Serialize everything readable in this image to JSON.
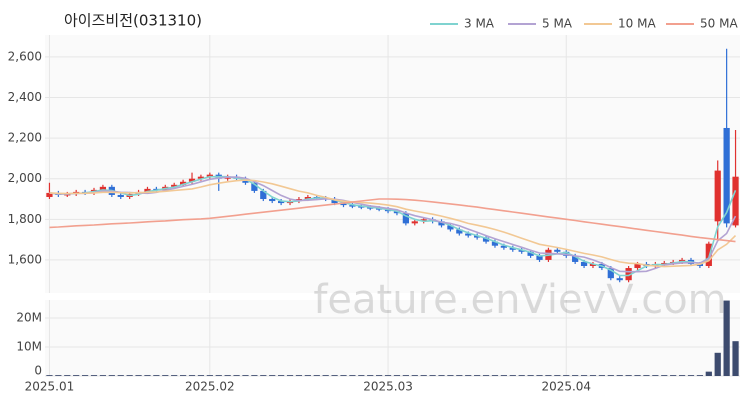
{
  "chart_data": {
    "type": "candlestick",
    "title": "아이즈비전(031310)",
    "watermark": "feature.enVievV.com",
    "categories": [
      "2025.01",
      null,
      null,
      null,
      null,
      null,
      null,
      null,
      null,
      null,
      null,
      null,
      null,
      null,
      null,
      null,
      null,
      null,
      "2025.02",
      null,
      null,
      null,
      null,
      null,
      null,
      null,
      null,
      null,
      null,
      null,
      null,
      null,
      null,
      null,
      null,
      null,
      null,
      null,
      "2025.03",
      null,
      null,
      null,
      null,
      null,
      null,
      null,
      null,
      null,
      null,
      null,
      null,
      null,
      null,
      null,
      null,
      null,
      null,
      null,
      "2025.04",
      null,
      null,
      null,
      null,
      null,
      null,
      null,
      null,
      null,
      null,
      null,
      null,
      null,
      null,
      null,
      null,
      null,
      null,
      null
    ],
    "open": [
      1910,
      1930,
      1920,
      1925,
      1935,
      1930,
      1945,
      1960,
      1920,
      1910,
      1925,
      1935,
      1950,
      1945,
      1960,
      1970,
      1985,
      2000,
      2010,
      2020,
      2000,
      2010,
      2000,
      1980,
      1940,
      1900,
      1890,
      1880,
      1890,
      1900,
      1910,
      1905,
      1900,
      1880,
      1870,
      1865,
      1860,
      1855,
      1850,
      1840,
      1830,
      1780,
      1790,
      1800,
      1790,
      1770,
      1750,
      1730,
      1720,
      1710,
      1690,
      1670,
      1660,
      1650,
      1640,
      1620,
      1600,
      1650,
      1640,
      1620,
      1590,
      1570,
      1580,
      1560,
      1510,
      1500,
      1560,
      1580,
      1570,
      1580,
      1585,
      1590,
      1600,
      1580,
      1570,
      1790,
      2250,
      1770
    ],
    "high": [
      1980,
      1940,
      1935,
      1945,
      1945,
      1955,
      1970,
      1970,
      1930,
      1935,
      1945,
      1960,
      1960,
      1970,
      1980,
      1995,
      2030,
      2020,
      2030,
      2030,
      2020,
      2020,
      2010,
      1990,
      1950,
      1910,
      1900,
      1900,
      1910,
      1920,
      1920,
      1915,
      1910,
      1890,
      1880,
      1875,
      1870,
      1865,
      1860,
      1850,
      1840,
      1800,
      1810,
      1810,
      1800,
      1780,
      1760,
      1740,
      1730,
      1720,
      1700,
      1680,
      1670,
      1660,
      1650,
      1630,
      1660,
      1660,
      1650,
      1630,
      1600,
      1590,
      1590,
      1570,
      1520,
      1570,
      1590,
      1590,
      1590,
      1595,
      1600,
      1610,
      1610,
      1590,
      1690,
      2090,
      2640,
      2240
    ],
    "low": [
      1900,
      1910,
      1910,
      1915,
      1920,
      1920,
      1935,
      1910,
      1900,
      1900,
      1915,
      1925,
      1935,
      1935,
      1950,
      1960,
      1975,
      1990,
      2000,
      1940,
      1990,
      1990,
      1970,
      1930,
      1890,
      1880,
      1870,
      1870,
      1880,
      1890,
      1895,
      1890,
      1870,
      1860,
      1855,
      1850,
      1845,
      1840,
      1830,
      1820,
      1770,
      1770,
      1780,
      1780,
      1760,
      1740,
      1720,
      1710,
      1700,
      1680,
      1660,
      1650,
      1640,
      1630,
      1610,
      1590,
      1590,
      1630,
      1610,
      1580,
      1560,
      1560,
      1550,
      1500,
      1490,
      1490,
      1550,
      1560,
      1560,
      1570,
      1575,
      1580,
      1570,
      1560,
      1560,
      1700,
      1760,
      1760
    ],
    "close": [
      1930,
      1920,
      1925,
      1935,
      1930,
      1945,
      1960,
      1920,
      1910,
      1925,
      1935,
      1950,
      1945,
      1960,
      1970,
      1985,
      2000,
      2010,
      2020,
      2000,
      2010,
      2000,
      1980,
      1940,
      1900,
      1890,
      1880,
      1890,
      1900,
      1910,
      1905,
      1900,
      1880,
      1870,
      1865,
      1860,
      1855,
      1850,
      1840,
      1830,
      1780,
      1790,
      1800,
      1790,
      1770,
      1750,
      1730,
      1720,
      1710,
      1690,
      1670,
      1660,
      1650,
      1640,
      1620,
      1600,
      1650,
      1640,
      1620,
      1590,
      1570,
      1580,
      1560,
      1510,
      1500,
      1560,
      1580,
      1570,
      1580,
      1585,
      1590,
      1600,
      1580,
      1570,
      1680,
      2040,
      1780,
      2010
    ],
    "up_color": "#e0312f",
    "down_color": "#2f6fd6",
    "ylim": [
      1437,
      2708
    ],
    "yticks": [
      {
        "value": 1600,
        "label": "1,600"
      },
      {
        "value": 1800,
        "label": "1,800"
      },
      {
        "value": 2000,
        "label": "2,000"
      },
      {
        "value": 2200,
        "label": "2,200"
      },
      {
        "value": 2400,
        "label": "2,400"
      },
      {
        "value": 2600,
        "label": "2,600"
      }
    ],
    "grid": true,
    "legend": "top-right",
    "series": [
      {
        "name": "3 MA",
        "color": "#7fd3d0",
        "values": [
          1930,
          1925,
          1925,
          1927,
          1930,
          1937,
          1945,
          1942,
          1930,
          1918,
          1923,
          1937,
          1943,
          1952,
          1958,
          1972,
          1985,
          1998,
          2010,
          2010,
          2010,
          2003,
          1997,
          1973,
          1940,
          1910,
          1890,
          1887,
          1890,
          1900,
          1905,
          1905,
          1895,
          1883,
          1872,
          1865,
          1860,
          1855,
          1848,
          1840,
          1817,
          1800,
          1790,
          1793,
          1787,
          1770,
          1750,
          1733,
          1720,
          1707,
          1690,
          1673,
          1660,
          1650,
          1637,
          1620,
          1623,
          1630,
          1637,
          1617,
          1593,
          1580,
          1570,
          1550,
          1523,
          1523,
          1547,
          1570,
          1577,
          1578,
          1585,
          1592,
          1590,
          1583,
          1610,
          1763,
          1833,
          1943
        ]
      },
      {
        "name": "5 MA",
        "color": "#b3a3d3",
        "values": [
          1930,
          1925,
          1925,
          1928,
          1928,
          1931,
          1939,
          1938,
          1933,
          1932,
          1930,
          1928,
          1933,
          1943,
          1952,
          1962,
          1972,
          1985,
          1997,
          2003,
          2008,
          2008,
          2002,
          1986,
          1966,
          1942,
          1918,
          1900,
          1892,
          1894,
          1897,
          1901,
          1899,
          1893,
          1884,
          1875,
          1866,
          1860,
          1854,
          1847,
          1831,
          1818,
          1808,
          1798,
          1786,
          1780,
          1768,
          1752,
          1736,
          1720,
          1704,
          1690,
          1676,
          1662,
          1648,
          1634,
          1632,
          1630,
          1626,
          1620,
          1614,
          1600,
          1584,
          1562,
          1544,
          1542,
          1542,
          1544,
          1558,
          1575,
          1581,
          1585,
          1587,
          1585,
          1604,
          1694,
          1730,
          1816
        ]
      },
      {
        "name": "10 MA",
        "color": "#f2c894",
        "values": [
          1930,
          1928,
          1927,
          1928,
          1928,
          1930,
          1933,
          1933,
          1931,
          1930,
          1931,
          1933,
          1935,
          1938,
          1942,
          1946,
          1950,
          1959,
          1970,
          1978,
          1985,
          1990,
          1993,
          1991,
          1984,
          1975,
          1963,
          1951,
          1939,
          1930,
          1918,
          1908,
          1896,
          1889,
          1886,
          1883,
          1880,
          1876,
          1870,
          1862,
          1850,
          1841,
          1833,
          1825,
          1816,
          1805,
          1793,
          1780,
          1771,
          1761,
          1750,
          1737,
          1722,
          1707,
          1692,
          1677,
          1669,
          1661,
          1652,
          1642,
          1632,
          1624,
          1615,
          1602,
          1590,
          1584,
          1582,
          1574,
          1570,
          1567,
          1569,
          1571,
          1573,
          1579,
          1596,
          1649,
          1677,
          1720
        ]
      },
      {
        "name": "50 MA",
        "color": "#f2a08f",
        "values": [
          1760,
          1762,
          1765,
          1768,
          1770,
          1772,
          1775,
          1778,
          1780,
          1782,
          1785,
          1788,
          1790,
          1792,
          1795,
          1798,
          1800,
          1802,
          1805,
          1810,
          1815,
          1820,
          1825,
          1830,
          1835,
          1840,
          1845,
          1850,
          1855,
          1860,
          1865,
          1870,
          1875,
          1880,
          1885,
          1890,
          1895,
          1900,
          1900,
          1899,
          1897,
          1894,
          1890,
          1886,
          1881,
          1876,
          1871,
          1865,
          1860,
          1854,
          1848,
          1842,
          1836,
          1830,
          1824,
          1818,
          1812,
          1806,
          1800,
          1794,
          1788,
          1782,
          1776,
          1770,
          1764,
          1758,
          1752,
          1746,
          1740,
          1734,
          1728,
          1722,
          1716,
          1710,
          1705,
          1700,
          1695,
          1690
        ]
      }
    ],
    "volume": {
      "color": "#3d4b6e",
      "values": [
        300000,
        300000,
        300000,
        300000,
        300000,
        300000,
        300000,
        300000,
        300000,
        300000,
        300000,
        300000,
        300000,
        300000,
        300000,
        300000,
        300000,
        300000,
        300000,
        300000,
        300000,
        300000,
        300000,
        300000,
        300000,
        300000,
        300000,
        300000,
        300000,
        300000,
        300000,
        300000,
        300000,
        300000,
        300000,
        300000,
        300000,
        300000,
        300000,
        300000,
        300000,
        300000,
        300000,
        300000,
        300000,
        300000,
        300000,
        300000,
        300000,
        300000,
        300000,
        300000,
        300000,
        300000,
        300000,
        300000,
        300000,
        300000,
        300000,
        300000,
        300000,
        300000,
        300000,
        300000,
        300000,
        300000,
        300000,
        300000,
        300000,
        300000,
        300000,
        300000,
        300000,
        300000,
        1500000,
        8000000,
        26000000,
        12000000
      ],
      "ylim": [
        0,
        26200000
      ],
      "yticks": [
        0,
        {
          "value": 10000000,
          "label": "10M"
        },
        {
          "value": 20000000,
          "label": "20M"
        }
      ]
    }
  }
}
